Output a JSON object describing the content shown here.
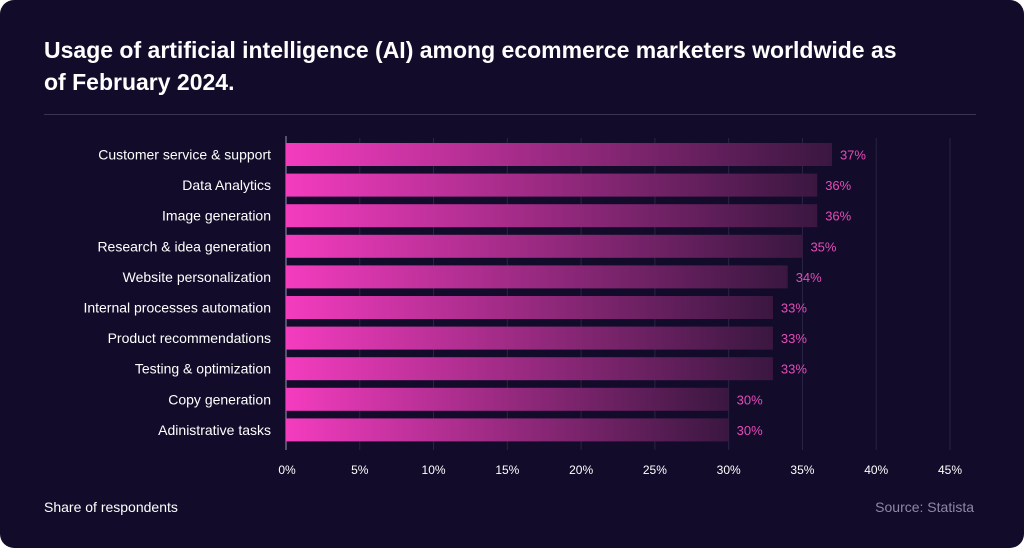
{
  "title": "Usage of artificial intelligence (AI) among ecommerce marketers worldwide as of February 2024.",
  "footer": {
    "left": "Share of respondents",
    "right": "Source: Statista"
  },
  "colors": {
    "background": "#120c2a",
    "bar_start": "#f43cbf",
    "bar_end": "#3a1740",
    "value_label": "#e64bb8",
    "gridline": "#2a2445"
  },
  "chart_data": {
    "type": "bar",
    "orientation": "horizontal",
    "categories": [
      "Customer service & support",
      "Data Analytics",
      "Image generation",
      "Research & idea generation",
      "Website personalization",
      "Internal processes automation",
      "Product recommendations",
      "Testing & optimization",
      "Copy generation",
      "Adinistrative tasks"
    ],
    "values": [
      37,
      36,
      36,
      35,
      34,
      33,
      33,
      33,
      30,
      30
    ],
    "value_labels": [
      "37%",
      "36%",
      "36%",
      "35%",
      "34%",
      "33%",
      "33%",
      "33%",
      "30%",
      "30%"
    ],
    "x_ticks": [
      0,
      5,
      10,
      15,
      20,
      25,
      30,
      35,
      40,
      45
    ],
    "x_tick_labels": [
      "0%",
      "5%",
      "10%",
      "15%",
      "20%",
      "25%",
      "30%",
      "35%",
      "40%",
      "45%"
    ],
    "xlim": [
      0,
      45
    ],
    "grid": true
  }
}
